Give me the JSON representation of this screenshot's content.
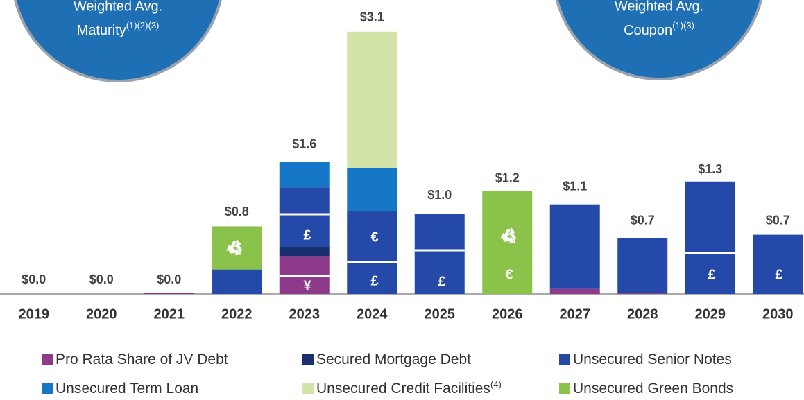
{
  "chart_data": {
    "type": "bar",
    "stacked": true,
    "categories": [
      "2019",
      "2020",
      "2021",
      "2022",
      "2023",
      "2024",
      "2025",
      "2026",
      "2027",
      "2028",
      "2029",
      "2030"
    ],
    "series": [
      {
        "name": "Pro Rata Share of JV Debt",
        "color": "#8e3a8a",
        "values": [
          0,
          0,
          0.01,
          0,
          0.44,
          0,
          0,
          0,
          0.06,
          0.01,
          0,
          0
        ]
      },
      {
        "name": "Secured Mortgage Debt",
        "color": "#1a2f6e",
        "values": [
          0,
          0,
          0,
          0,
          0.11,
          0,
          0,
          0,
          0,
          0,
          0,
          0
        ]
      },
      {
        "name": "Unsecured Senior Notes",
        "color": "#2549a8",
        "values": [
          0,
          0,
          0,
          0.29,
          0.71,
          0.98,
          0.95,
          0,
          1.0,
          0.65,
          1.33,
          0.7
        ]
      },
      {
        "name": "Unsecured Term Loan",
        "color": "#1677c8",
        "values": [
          0,
          0,
          0,
          0,
          0.3,
          0.51,
          0,
          0,
          0,
          0,
          0,
          0
        ]
      },
      {
        "name": "Unsecured Credit Facilities",
        "name_note": "(4)",
        "color": "#d2e4a8",
        "values": [
          0,
          0,
          0,
          0,
          0,
          1.61,
          0,
          0,
          0,
          0,
          0,
          0
        ]
      },
      {
        "name": "Unsecured Green Bonds",
        "color": "#8bc34a",
        "values": [
          0,
          0,
          0,
          0.51,
          0,
          0,
          0,
          1.22,
          0,
          0,
          0,
          0
        ]
      }
    ],
    "totals": {
      "values": [
        0,
        0,
        0,
        0.8,
        1.6,
        3.1,
        1.0,
        1.2,
        1.1,
        0.7,
        1.3,
        0.7
      ],
      "value_labels": [
        "$0.0",
        "$0.0",
        "$0.0",
        "$0.8",
        "$1.6",
        "$3.1",
        "$1.0",
        "$1.2",
        "$1.1",
        "$0.7",
        "$1.3",
        "$0.7"
      ]
    },
    "symbols": [
      "£",
      "¥",
      "€",
      "£",
      "£",
      "€",
      "£",
      "£"
    ],
    "callouts": [
      {
        "line1": "Weighted Avg.",
        "line2": "Maturity",
        "note": "(1)(2)(3)"
      },
      {
        "line1": "Weighted Avg.",
        "line2": "Coupon",
        "note": "(1)(3)"
      }
    ]
  }
}
